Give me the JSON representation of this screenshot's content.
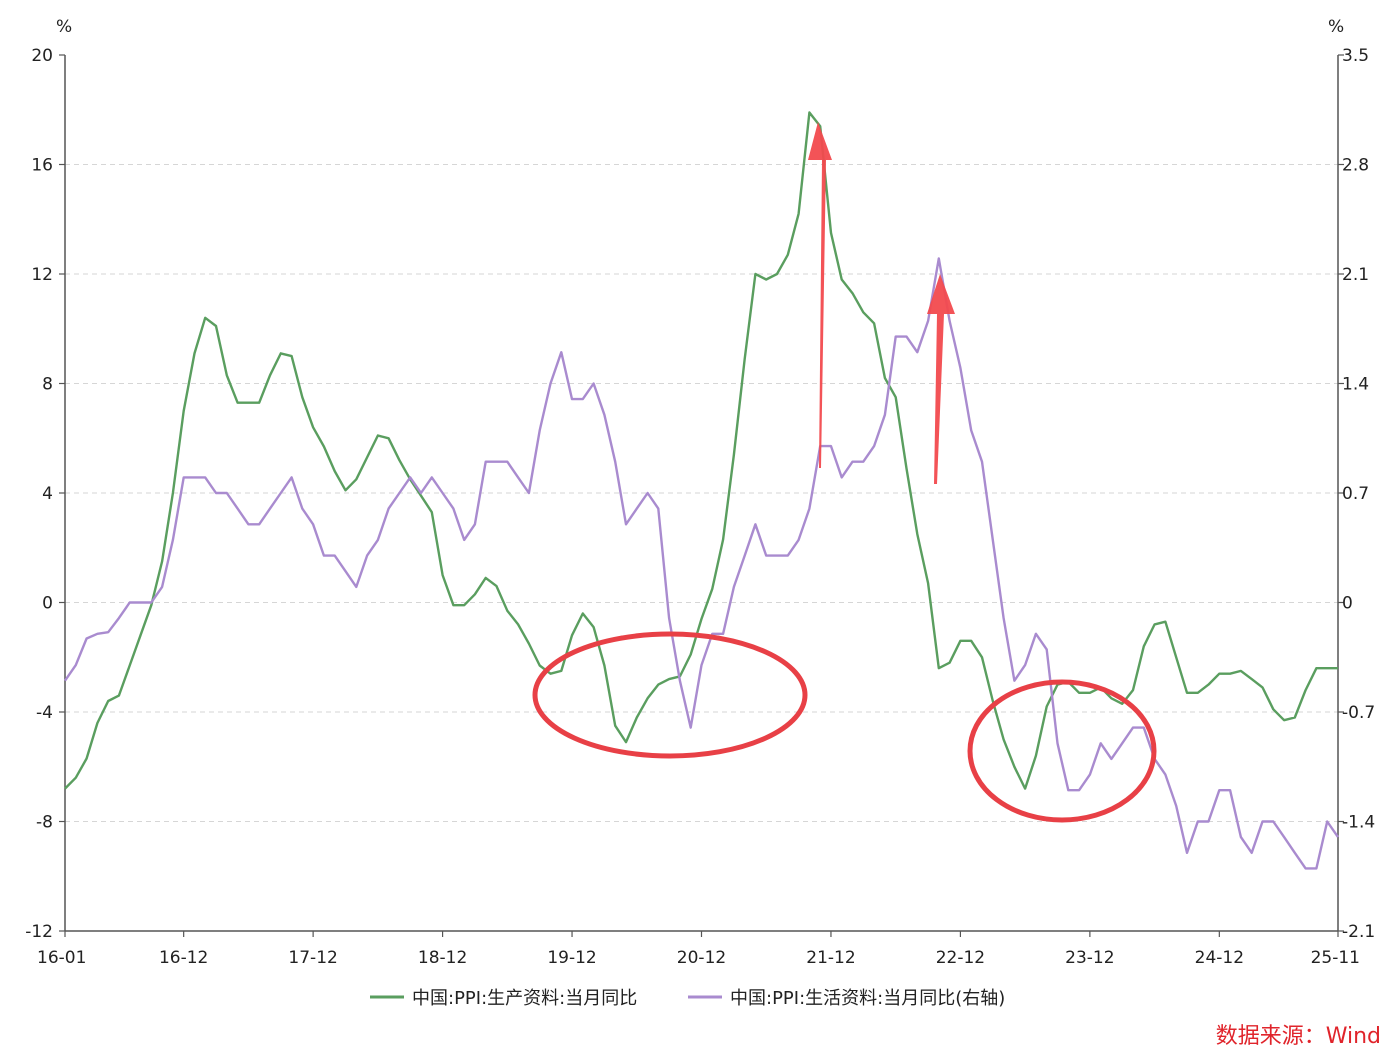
{
  "chart_data": {
    "type": "line",
    "title": "",
    "left_unit": "%",
    "right_unit": "%",
    "x_ticks": [
      "16-01",
      "16-12",
      "17-12",
      "18-12",
      "19-12",
      "20-12",
      "21-12",
      "22-12",
      "23-12",
      "24-12",
      "25-11"
    ],
    "x_tick_index": [
      0,
      11,
      23,
      35,
      47,
      59,
      71,
      83,
      95,
      107,
      118
    ],
    "ylim_left": [
      -12,
      20
    ],
    "left_ticks": [
      "20",
      "16",
      "12",
      "8",
      "4",
      "0",
      "-4",
      "-8",
      "-12"
    ],
    "ylim_right": [
      -2.1,
      3.5
    ],
    "right_ticks": [
      "3.5",
      "2.8",
      "2.1",
      "1.4",
      "0.7",
      "0",
      "-0.7",
      "-1.4",
      "-2.1"
    ],
    "grid": true,
    "legend_position": "bottom",
    "series": [
      {
        "name": "中国:PPI:生产资料:当月同比",
        "axis": "left",
        "color": "#5a9e5f",
        "values": [
          -6.8,
          -6.4,
          -5.7,
          -4.4,
          -3.6,
          -3.4,
          -2.3,
          -1.2,
          -0.1,
          1.5,
          4.0,
          7.0,
          9.1,
          10.4,
          10.1,
          8.3,
          7.3,
          7.3,
          7.3,
          8.3,
          9.1,
          9.0,
          7.5,
          6.4,
          5.7,
          4.8,
          4.1,
          4.5,
          5.3,
          6.1,
          6.0,
          5.2,
          4.5,
          3.9,
          3.3,
          1.0,
          -0.1,
          -0.1,
          0.3,
          0.9,
          0.6,
          -0.3,
          -0.8,
          -1.5,
          -2.3,
          -2.6,
          -2.5,
          -1.2,
          -0.4,
          -0.9,
          -2.3,
          -4.5,
          -5.1,
          -4.2,
          -3.5,
          -3.0,
          -2.8,
          -2.7,
          -1.9,
          -0.6,
          0.5,
          2.3,
          5.4,
          8.9,
          12.0,
          11.8,
          12.0,
          12.7,
          14.2,
          17.9,
          17.4,
          13.5,
          11.8,
          11.3,
          10.6,
          10.2,
          8.2,
          7.5,
          4.9,
          2.5,
          0.7,
          -2.4,
          -2.2,
          -1.4,
          -1.4,
          -2.0,
          -3.6,
          -5.0,
          -6.0,
          -6.8,
          -5.6,
          -3.8,
          -3.0,
          -2.9,
          -3.3,
          -3.3,
          -3.1,
          -3.5,
          -3.7,
          -3.2,
          -1.6,
          -0.8,
          -0.7,
          -2.0,
          -3.3,
          -3.3,
          -3.0,
          -2.6,
          -2.6,
          -2.5,
          -2.8,
          -3.1,
          -3.9,
          -4.3,
          -4.2,
          -3.2,
          -2.4,
          -2.4,
          -2.4
        ]
      },
      {
        "name": "中国:PPI:生活资料:当月同比(右轴)",
        "axis": "right",
        "color": "#a98bcf",
        "values": [
          -0.5,
          -0.4,
          -0.23,
          -0.2,
          -0.19,
          -0.1,
          0.0,
          0.0,
          0.0,
          0.1,
          0.4,
          0.8,
          0.8,
          0.8,
          0.7,
          0.7,
          0.6,
          0.5,
          0.5,
          0.6,
          0.7,
          0.8,
          0.6,
          0.5,
          0.3,
          0.3,
          0.2,
          0.1,
          0.3,
          0.4,
          0.6,
          0.7,
          0.8,
          0.7,
          0.8,
          0.7,
          0.6,
          0.4,
          0.5,
          0.9,
          0.9,
          0.9,
          0.8,
          0.7,
          1.1,
          1.4,
          1.6,
          1.3,
          1.3,
          1.4,
          1.2,
          0.9,
          0.5,
          0.6,
          0.7,
          0.6,
          -0.1,
          -0.5,
          -0.8,
          -0.4,
          -0.2,
          -0.2,
          0.1,
          0.3,
          0.5,
          0.3,
          0.3,
          0.3,
          0.4,
          0.6,
          1.0,
          1.0,
          0.8,
          0.9,
          0.9,
          1.0,
          1.2,
          1.7,
          1.7,
          1.6,
          1.8,
          2.2,
          1.8,
          1.5,
          1.1,
          0.9,
          0.4,
          -0.1,
          -0.5,
          -0.4,
          -0.2,
          -0.3,
          -0.9,
          -1.2,
          -1.2,
          -1.1,
          -0.9,
          -1.0,
          -0.9,
          -0.8,
          -0.8,
          -1.0,
          -1.1,
          -1.3,
          -1.6,
          -1.4,
          -1.4,
          -1.2,
          -1.2,
          -1.5,
          -1.6,
          -1.4,
          -1.4,
          -1.5,
          -1.6,
          -1.7,
          -1.7,
          -1.4,
          -1.5
        ]
      }
    ]
  },
  "source_label": "数据来源：Wind",
  "annotations": [
    {
      "type": "arrow",
      "color": "#f24a4e"
    },
    {
      "type": "arrow",
      "color": "#f24a4e"
    },
    {
      "type": "ellipse",
      "color": "#e84046"
    },
    {
      "type": "ellipse",
      "color": "#e84046"
    }
  ]
}
